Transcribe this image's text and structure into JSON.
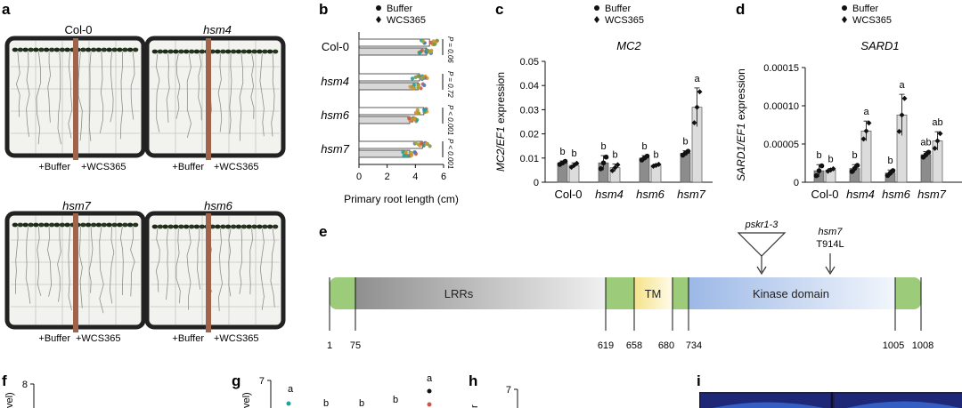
{
  "panel_letters": [
    "a",
    "b",
    "c",
    "d",
    "e",
    "f",
    "g",
    "h",
    "i"
  ],
  "colors": {
    "buffer_bar": "#8c8c8c",
    "wcs_bar": "#dcdcdc",
    "stick": "#a0644c",
    "lrr": "#d8d8d8",
    "tm": "#f7e7a0",
    "kinase": "#c9d9ef",
    "green": "#9cca7a"
  },
  "panel_a": {
    "plates": [
      {
        "title": "Col-0",
        "italic": false,
        "left_label": "+Buffer",
        "right_label": "+WCS365"
      },
      {
        "title": "hsm4",
        "italic": true,
        "left_label": "+Buffer",
        "right_label": "+WCS365"
      },
      {
        "title": "hsm7",
        "italic": true,
        "left_label": "+Buffer",
        "right_label": "+WCS365"
      },
      {
        "title": "hsm6",
        "italic": true,
        "left_label": "+Buffer",
        "right_label": "+WCS365"
      }
    ]
  },
  "legend": {
    "buffer": "Buffer",
    "wcs": "WCS365"
  },
  "chart_data": [
    {
      "panel": "b",
      "type": "bar",
      "orientation": "horizontal",
      "categories": [
        "Col-0",
        "hsm4",
        "hsm6",
        "hsm7"
      ],
      "series": [
        {
          "name": "Buffer",
          "values": [
            5.0,
            4.3,
            4.6,
            4.5
          ]
        },
        {
          "name": "WCS365",
          "values": [
            4.8,
            4.2,
            3.6,
            3.6
          ]
        }
      ],
      "xlabel": "Primary root length (cm)",
      "xticks": [
        "0",
        "2",
        "4",
        "6"
      ],
      "xlim": [
        0,
        6
      ],
      "pvalues": [
        "P = 0.06",
        "P = 0.72",
        "P < 0.001",
        "P < 0.001"
      ]
    },
    {
      "panel": "c",
      "type": "bar",
      "title": "MC2",
      "ylabel_italic": "MC2/EF1",
      "ylabel_rest": " expression",
      "categories": [
        "Col-0",
        "hsm4",
        "hsm6",
        "hsm7"
      ],
      "series": [
        {
          "name": "Buffer",
          "values": [
            0.008,
            0.008,
            0.01,
            0.012
          ],
          "errors": [
            0.0008,
            0.003,
            0.001,
            0.001
          ],
          "letters": [
            "b",
            "b",
            "b",
            "b"
          ]
        },
        {
          "name": "WCS365",
          "values": [
            0.007,
            0.006,
            0.007,
            0.031
          ],
          "errors": [
            0.001,
            0.0015,
            0.0005,
            0.008
          ],
          "letters": [
            "b",
            "b",
            "b",
            "a"
          ]
        }
      ],
      "yticks": [
        "0",
        "0.01",
        "0.02",
        "0.03",
        "0.04",
        "0.05"
      ],
      "ylim": [
        0,
        0.05
      ]
    },
    {
      "panel": "d",
      "type": "bar",
      "title": "SARD1",
      "ylabel_italic": "SARD1/EF1",
      "ylabel_rest": " expression",
      "categories": [
        "Col-0",
        "hsm4",
        "hsm6",
        "hsm7"
      ],
      "series": [
        {
          "name": "Buffer",
          "values": [
            1.5e-05,
            1.8e-05,
            1.2e-05,
            3.6e-05
          ],
          "errors": [
            8e-06,
            5e-06,
            4e-06,
            4e-06
          ],
          "letters": [
            "b",
            "b",
            "b",
            "ab"
          ]
        },
        {
          "name": "WCS365",
          "values": [
            1.6e-05,
            6.7e-05,
            8.8e-05,
            5.4e-05
          ],
          "errors": [
            2e-06,
            1.3e-05,
            2.7e-05,
            1.2e-05
          ],
          "letters": [
            "b",
            "a",
            "a",
            "ab"
          ]
        }
      ],
      "yticks": [
        "0",
        "0.00005",
        "0.00010",
        "0.00015"
      ],
      "ylim": [
        0,
        0.00015
      ]
    }
  ],
  "panel_e": {
    "domains": [
      {
        "label": "LRRs",
        "start": 75,
        "end": 619
      },
      {
        "label": "TM",
        "start": 658,
        "end": 680
      },
      {
        "label": "Kinase domain",
        "start": 734,
        "end": 1005
      }
    ],
    "positions": [
      "1",
      "75",
      "619",
      "658",
      "680",
      "734",
      "1005",
      "1008"
    ],
    "insertion_label": "pskr1-3",
    "mutation_label": "hsm7",
    "mutation_site": "T914L"
  },
  "panel_f": {
    "ytick_top": "8",
    "ylabel_fragment": "vel)"
  },
  "panel_g": {
    "ytick_top": "7",
    "ylabel_fragment": "vel)",
    "letters": [
      "a",
      "b",
      "b",
      "b",
      "a"
    ]
  },
  "panel_h": {
    "ytick_top": "7",
    "ylabel_fragment": "r"
  }
}
